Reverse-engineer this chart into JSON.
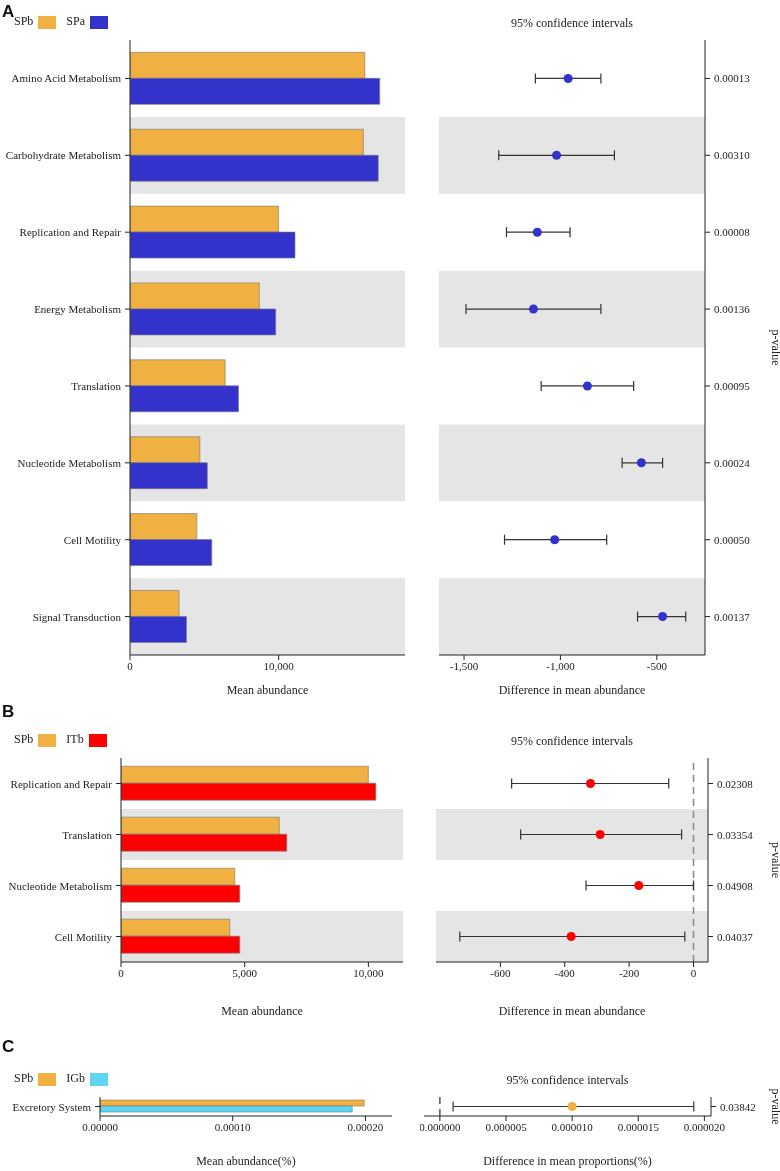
{
  "chart_data": [
    {
      "type": "bar",
      "orientation": "horizontal",
      "annotations": [
        "A"
      ],
      "legend": "top left",
      "xlabel": "Mean abundance",
      "categories": [
        "Amino Acid Metabolism",
        "Carbohydrate Metabolism",
        "Replication and Repair",
        "Energy Metabolism",
        "Translation",
        "Nucleotide Metabolism",
        "Cell Motility",
        "Signal Transduction"
      ],
      "series": [
        {
          "name": "SPb",
          "color": "#f0b042",
          "values": [
            15800,
            15700,
            10000,
            8700,
            6400,
            4700,
            4500,
            3300
          ]
        },
        {
          "name": "SPa",
          "color": "#3333cc",
          "values": [
            16800,
            16700,
            11100,
            9800,
            7300,
            5200,
            5500,
            3800
          ]
        }
      ],
      "xlim": [
        0,
        18500
      ],
      "xticks": [
        0,
        {
          "value": 10000,
          "label": "10,000"
        }
      ],
      "bands": [
        {
          "axis": "y",
          "from": "Carbohydrate Metabolism",
          "to": "Carbohydrate Metabolism",
          "color": "#e5e5e5"
        },
        {
          "axis": "y",
          "from": "Energy Metabolism",
          "to": "Energy Metabolism",
          "color": "#e5e5e5"
        },
        {
          "axis": "y",
          "from": "Nucleotide Metabolism",
          "to": "Nucleotide Metabolism",
          "color": "#e5e5e5"
        },
        {
          "axis": "y",
          "from": "Signal Transduction",
          "to": "Signal Transduction",
          "color": "#e5e5e5"
        }
      ]
    },
    {
      "type": "scatter",
      "orientation": "horizontal",
      "title": "95% confidence intervals",
      "xlabel": "Difference in mean abundance",
      "ylabel": "p-value",
      "marker": "circle",
      "categories": [
        "0.00013",
        "0.00310",
        "0.00008",
        "0.00136",
        "0.00095",
        "0.00024",
        "0.00050",
        "0.00137"
      ],
      "series": [
        {
          "color": "#3333cc",
          "values": [
            -960,
            -1020,
            -1120,
            -1140,
            -860,
            -580,
            -1030,
            -470
          ],
          "errors": [
            [
              -1130,
              -790
            ],
            [
              -1320,
              -720
            ],
            [
              -1280,
              -950
            ],
            [
              -1490,
              -790
            ],
            [
              -1100,
              -620
            ],
            [
              -680,
              -470
            ],
            [
              -1290,
              -760
            ],
            [
              -600,
              -350
            ]
          ]
        }
      ],
      "xlim": [
        -1630,
        -250
      ],
      "xticks": [
        {
          "value": -1500,
          "label": "-1,500"
        },
        {
          "value": -1000,
          "label": "-1,000"
        },
        -500
      ],
      "bands": [
        {
          "axis": "y",
          "from": "0.00310",
          "to": "0.00310",
          "color": "#e5e5e5"
        },
        {
          "axis": "y",
          "from": "0.00136",
          "to": "0.00136",
          "color": "#e5e5e5"
        },
        {
          "axis": "y",
          "from": "0.00024",
          "to": "0.00024",
          "color": "#e5e5e5"
        },
        {
          "axis": "y",
          "from": "0.00137",
          "to": "0.00137",
          "color": "#e5e5e5"
        }
      ]
    },
    {
      "type": "bar",
      "orientation": "horizontal",
      "annotations": [
        "B"
      ],
      "legend": "top left",
      "xlabel": "Mean abundance",
      "categories": [
        "Replication and Repair",
        "Translation",
        "Nucleotide Metabolism",
        "Cell Motility"
      ],
      "series": [
        {
          "name": "SPb",
          "color": "#f0b042",
          "values": [
            10000,
            6400,
            4600,
            4400
          ]
        },
        {
          "name": "ITb",
          "color": "#ff0000",
          "values": [
            10300,
            6700,
            4800,
            4800
          ]
        }
      ],
      "xlim": [
        0,
        11400
      ],
      "xticks": [
        0,
        {
          "value": 5000,
          "label": "5,000"
        },
        {
          "value": 10000,
          "label": "10,000"
        }
      ],
      "bands": [
        {
          "axis": "y",
          "from": "Translation",
          "to": "Translation",
          "color": "#e5e5e5"
        },
        {
          "axis": "y",
          "from": "Cell Motility",
          "to": "Cell Motility",
          "color": "#e5e5e5"
        }
      ]
    },
    {
      "type": "scatter",
      "orientation": "horizontal",
      "title": "95% confidence intervals",
      "xlabel": "Difference in mean abundance",
      "ylabel": "p-value",
      "marker": "circle",
      "categories": [
        "0.02308",
        "0.03354",
        "0.04908",
        "0.04037"
      ],
      "series": [
        {
          "color": "#ff0000",
          "values": [
            -320,
            -290,
            -170,
            -380
          ],
          "errors": [
            [
              -565,
              -77
            ],
            [
              -537,
              -37
            ],
            [
              -334,
              0
            ],
            [
              -726,
              -27
            ]
          ]
        }
      ],
      "xlim": [
        -800,
        45
      ],
      "xticks": [
        -600,
        -400,
        -200,
        0
      ],
      "ref_lines": [
        {
          "axis": "x",
          "value": 0,
          "color": "#888888",
          "line_style": "dashed"
        }
      ],
      "bands": [
        {
          "axis": "y",
          "from": "0.03354",
          "to": "0.03354",
          "color": "#e5e5e5"
        },
        {
          "axis": "y",
          "from": "0.04037",
          "to": "0.04037",
          "color": "#e5e5e5"
        }
      ]
    },
    {
      "type": "bar",
      "orientation": "horizontal",
      "annotations": [
        "C"
      ],
      "legend": "top left",
      "xlabel": "Mean abundance(%)",
      "categories": [
        "Excretory System"
      ],
      "series": [
        {
          "name": "SPb",
          "color": "#f0b042",
          "values": [
            0.000199
          ]
        },
        {
          "name": "IGb",
          "color": "#5dd5f5",
          "values": [
            0.00019
          ]
        }
      ],
      "xlim": [
        0,
        0.00022
      ],
      "xticks": [
        {
          "value": 0,
          "label": "0.00000"
        },
        {
          "value": 0.0001,
          "label": "0.00010"
        },
        {
          "value": 0.0002,
          "label": "0.00020"
        }
      ]
    },
    {
      "type": "scatter",
      "orientation": "horizontal",
      "title": "95% confidence intervals",
      "xlabel": "Difference in mean proportions(%)",
      "ylabel": "p-value",
      "marker": "circle",
      "categories": [
        "0.03842"
      ],
      "series": [
        {
          "color": "#f0b042",
          "values": [
            1e-05
          ],
          "errors": [
            [
              1e-06,
              1.92e-05
            ]
          ]
        }
      ],
      "xlim": [
        -1.2e-06,
        2.05e-05
      ],
      "xticks": [
        {
          "value": 0,
          "label": "0.000000"
        },
        {
          "value": 5e-06,
          "label": "0.000005"
        },
        {
          "value": 1e-05,
          "label": "0.000010"
        },
        {
          "value": 1.5e-05,
          "label": "0.000015"
        },
        {
          "value": 2e-05,
          "label": "0.000020"
        }
      ],
      "ref_lines": [
        {
          "axis": "x",
          "value": 0,
          "color": "#555555",
          "line_style": "dashed"
        }
      ]
    }
  ]
}
